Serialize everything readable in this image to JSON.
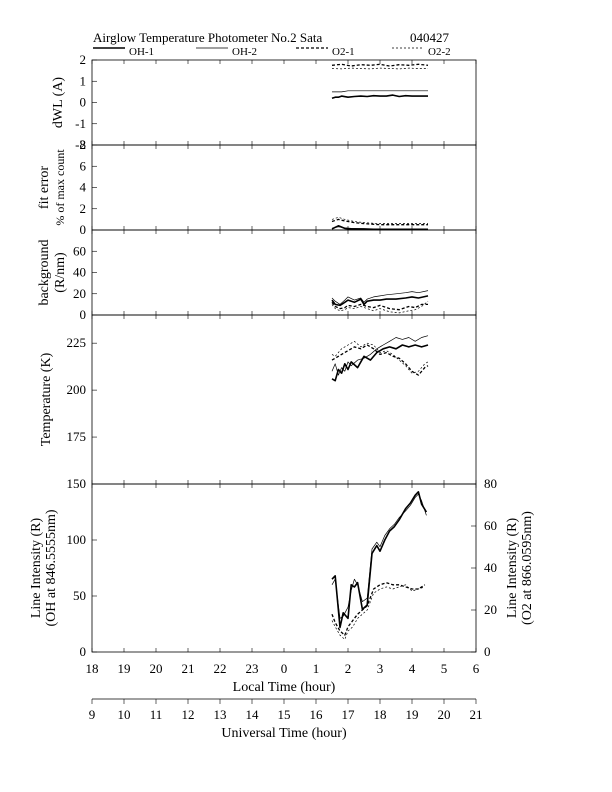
{
  "header": {
    "title": "Airglow Temperature Photometer No.2  Sata",
    "date": "040427"
  },
  "legend": [
    {
      "name": "OH-1",
      "style": "solid-thick"
    },
    {
      "name": "OH-2",
      "style": "solid-thin"
    },
    {
      "name": "O2-1",
      "style": "dashed-thick"
    },
    {
      "name": "O2-2",
      "style": "dashed-thin"
    }
  ],
  "bottom_axes": {
    "local": {
      "label": "Local Time (hour)",
      "ticks": [
        "18",
        "19",
        "20",
        "21",
        "22",
        "23",
        "0",
        "1",
        "2",
        "3",
        "4",
        "5",
        "6"
      ]
    },
    "universal": {
      "label": "Universal Time (hour)",
      "ticks": [
        "9",
        "10",
        "11",
        "12",
        "13",
        "14",
        "15",
        "16",
        "17",
        "18",
        "19",
        "20",
        "21"
      ]
    }
  },
  "chart_data": [
    {
      "type": "line",
      "ylabel": "dWL (A)",
      "ylim": [
        -2,
        2
      ],
      "yticks": [
        "2",
        "1",
        "0",
        "-1",
        "-2"
      ],
      "series": [
        {
          "name": "OH-1",
          "x": [
            1.5,
            1.6,
            1.7,
            1.8,
            2.0,
            2.2,
            2.4,
            2.6,
            2.8,
            3.0,
            3.2,
            3.4,
            3.6,
            3.8,
            4.0,
            4.2,
            4.5
          ],
          "y": [
            0.2,
            0.25,
            0.25,
            0.3,
            0.25,
            0.28,
            0.3,
            0.28,
            0.32,
            0.3,
            0.3,
            0.35,
            0.28,
            0.32,
            0.3,
            0.3,
            0.3
          ]
        },
        {
          "name": "OH-2",
          "x": [
            1.5,
            1.8,
            2.0,
            2.5,
            3.0,
            3.5,
            4.0,
            4.5
          ],
          "y": [
            0.5,
            0.5,
            0.55,
            0.55,
            0.55,
            0.55,
            0.55,
            0.55
          ]
        },
        {
          "name": "O2-1",
          "x": [
            1.5,
            1.8,
            2.1,
            2.4,
            2.7,
            3.0,
            3.3,
            3.6,
            3.9,
            4.2,
            4.5
          ],
          "y": [
            1.75,
            1.8,
            1.72,
            1.78,
            1.75,
            1.8,
            1.72,
            1.78,
            1.75,
            1.8,
            1.75
          ]
        },
        {
          "name": "O2-2",
          "x": [
            1.5,
            1.8,
            2.1,
            2.4,
            2.7,
            3.0,
            3.3,
            3.6,
            3.9,
            4.2,
            4.5
          ],
          "y": [
            1.6,
            1.58,
            1.62,
            1.6,
            1.58,
            1.62,
            1.6,
            1.58,
            1.62,
            1.6,
            1.6
          ]
        }
      ]
    },
    {
      "type": "line",
      "ylabel": "fit error",
      "ylabel2": "% of max count",
      "ylim": [
        0,
        8
      ],
      "yticks": [
        "8",
        "6",
        "4",
        "2",
        "0"
      ],
      "series": [
        {
          "name": "OH-1",
          "x": [
            1.5,
            1.7,
            1.9,
            2.1,
            2.5,
            3.0,
            3.5,
            4.0,
            4.5
          ],
          "y": [
            0.1,
            0.4,
            0.15,
            0.1,
            0.1,
            0.05,
            0.05,
            0.05,
            0.05
          ]
        },
        {
          "name": "OH-2",
          "x": [
            1.5,
            1.7,
            1.9,
            2.1,
            2.5,
            3.0,
            3.5,
            4.0,
            4.5
          ],
          "y": [
            0.15,
            0.3,
            0.2,
            0.15,
            0.1,
            0.1,
            0.1,
            0.1,
            0.1
          ]
        },
        {
          "name": "O2-1",
          "x": [
            1.5,
            1.7,
            1.9,
            2.2,
            2.5,
            3.0,
            3.5,
            4.0,
            4.5
          ],
          "y": [
            0.8,
            1.0,
            0.85,
            0.7,
            0.6,
            0.5,
            0.5,
            0.5,
            0.5
          ]
        },
        {
          "name": "O2-2",
          "x": [
            1.5,
            1.7,
            1.9,
            2.2,
            2.5,
            3.0,
            3.5,
            4.0,
            4.5
          ],
          "y": [
            1.0,
            1.2,
            1.0,
            0.8,
            0.7,
            0.6,
            0.6,
            0.6,
            0.6
          ]
        }
      ]
    },
    {
      "type": "line",
      "ylabel": "background",
      "ylabel2": "(R/nm)",
      "ylim": [
        0,
        80
      ],
      "yticks": [
        "60",
        "40",
        "20",
        "0"
      ],
      "series": [
        {
          "name": "OH-1",
          "x": [
            1.5,
            1.6,
            1.75,
            1.9,
            2.0,
            2.2,
            2.4,
            2.5,
            2.6,
            2.8,
            3.0,
            3.2,
            3.5,
            3.8,
            4.0,
            4.2,
            4.5
          ],
          "y": [
            14,
            10,
            9,
            12,
            14,
            12,
            15,
            10,
            13,
            14,
            14,
            15,
            15,
            16,
            17,
            16,
            18
          ]
        },
        {
          "name": "OH-2",
          "x": [
            1.5,
            1.6,
            1.75,
            1.9,
            2.0,
            2.2,
            2.4,
            2.5,
            2.6,
            2.8,
            3.0,
            3.2,
            3.5,
            3.8,
            4.0,
            4.2,
            4.5
          ],
          "y": [
            16,
            13,
            10,
            14,
            17,
            14,
            16,
            12,
            15,
            17,
            18,
            19,
            20,
            21,
            22,
            21,
            23
          ]
        },
        {
          "name": "O2-1",
          "x": [
            1.5,
            1.6,
            1.75,
            1.9,
            2.0,
            2.2,
            2.4,
            2.6,
            2.8,
            3.0,
            3.3,
            3.6,
            3.9,
            4.1,
            4.3,
            4.5
          ],
          "y": [
            12,
            8,
            6,
            7,
            9,
            8,
            10,
            8,
            7,
            9,
            6,
            5,
            8,
            7,
            10,
            10
          ]
        },
        {
          "name": "O2-2",
          "x": [
            1.5,
            1.6,
            1.75,
            1.9,
            2.0,
            2.2,
            2.4,
            2.6,
            2.8,
            3.0,
            3.3,
            3.6,
            3.9,
            4.1,
            4.3,
            4.5
          ],
          "y": [
            10,
            6,
            4,
            5,
            7,
            6,
            8,
            6,
            4,
            6,
            3,
            2,
            4,
            5,
            8,
            13
          ]
        }
      ]
    },
    {
      "type": "line",
      "ylabel": "Temperature (K)",
      "ylim": [
        150,
        240
      ],
      "yticks": [
        "225",
        "200",
        "175"
      ],
      "series": [
        {
          "name": "OH-1",
          "x": [
            1.5,
            1.6,
            1.7,
            1.8,
            1.9,
            2.0,
            2.1,
            2.3,
            2.5,
            2.7,
            2.9,
            3.1,
            3.3,
            3.5,
            3.7,
            3.9,
            4.1,
            4.3,
            4.5
          ],
          "y": [
            206,
            205,
            211,
            209,
            214,
            211,
            215,
            212,
            218,
            216,
            220,
            222,
            223,
            222,
            224,
            223,
            224,
            223,
            224
          ]
        },
        {
          "name": "OH-2",
          "x": [
            1.5,
            1.6,
            1.7,
            1.8,
            1.9,
            2.0,
            2.1,
            2.3,
            2.5,
            2.7,
            2.9,
            3.1,
            3.3,
            3.5,
            3.7,
            3.9,
            4.1,
            4.3,
            4.5
          ],
          "y": [
            210,
            214,
            208,
            212,
            210,
            215,
            213,
            216,
            217,
            219,
            222,
            224,
            226,
            228,
            227,
            228,
            226,
            228,
            229
          ]
        },
        {
          "name": "O2-1",
          "x": [
            1.5,
            1.6,
            1.8,
            2.0,
            2.2,
            2.4,
            2.6,
            2.8,
            3.0,
            3.2,
            3.4,
            3.6,
            3.8,
            4.0,
            4.2,
            4.4,
            4.5
          ],
          "y": [
            216,
            217,
            219,
            221,
            223,
            222,
            224,
            222,
            219,
            220,
            218,
            217,
            214,
            210,
            208,
            212,
            213
          ]
        },
        {
          "name": "O2-2",
          "x": [
            1.5,
            1.6,
            1.8,
            2.0,
            2.2,
            2.4,
            2.6,
            2.8,
            3.0,
            3.2,
            3.4,
            3.6,
            3.8,
            4.0,
            4.2,
            4.4,
            4.5
          ],
          "y": [
            219,
            218,
            222,
            224,
            226,
            223,
            225,
            224,
            220,
            221,
            219,
            216,
            213,
            209,
            210,
            214,
            215
          ]
        }
      ]
    },
    {
      "type": "line",
      "ylabel": "Line Intensity (R)",
      "ylabel2": "(OH at 846.5555nm)",
      "ylabel_right": "Line Intensity (R)",
      "ylabel_right2": "(O2 at 866.0595nm)",
      "ylim": [
        0,
        150
      ],
      "yticks": [
        "150",
        "100",
        "50",
        "0"
      ],
      "ylim_right": [
        0,
        80
      ],
      "yticks_right": [
        "80",
        "60",
        "40",
        "20",
        "0"
      ],
      "series": [
        {
          "name": "OH-1",
          "axis": "left",
          "x": [
            1.5,
            1.6,
            1.75,
            1.85,
            2.0,
            2.1,
            2.2,
            2.3,
            2.45,
            2.6,
            2.75,
            2.9,
            3.0,
            3.15,
            3.3,
            3.45,
            3.6,
            3.8,
            3.95,
            4.1,
            4.2,
            4.3,
            4.45
          ],
          "y": [
            65,
            68,
            22,
            35,
            30,
            60,
            58,
            62,
            38,
            42,
            88,
            95,
            90,
            100,
            108,
            112,
            118,
            128,
            133,
            140,
            143,
            132,
            125
          ]
        },
        {
          "name": "OH-2",
          "axis": "left",
          "x": [
            1.5,
            1.6,
            1.75,
            1.85,
            2.0,
            2.1,
            2.2,
            2.3,
            2.45,
            2.6,
            2.75,
            2.9,
            3.0,
            3.15,
            3.3,
            3.45,
            3.6,
            3.8,
            3.95,
            4.1,
            4.2,
            4.3,
            4.45
          ],
          "y": [
            60,
            65,
            30,
            32,
            40,
            55,
            65,
            60,
            45,
            48,
            92,
            98,
            94,
            104,
            110,
            114,
            120,
            126,
            131,
            138,
            141,
            135,
            122
          ]
        },
        {
          "name": "O2-1",
          "axis": "right",
          "x": [
            1.5,
            1.6,
            1.75,
            1.9,
            2.0,
            2.15,
            2.3,
            2.45,
            2.6,
            2.8,
            3.0,
            3.2,
            3.4,
            3.6,
            3.8,
            4.0,
            4.2,
            4.4
          ],
          "y": [
            18,
            14,
            10,
            8,
            12,
            15,
            18,
            20,
            22,
            30,
            32,
            33,
            32,
            32,
            31,
            30,
            30,
            32
          ]
        },
        {
          "name": "O2-2",
          "axis": "right",
          "x": [
            1.5,
            1.6,
            1.75,
            1.9,
            2.0,
            2.15,
            2.3,
            2.45,
            2.6,
            2.8,
            3.0,
            3.2,
            3.4,
            3.6,
            3.8,
            4.0,
            4.2,
            4.4
          ],
          "y": [
            15,
            12,
            8,
            6,
            10,
            12,
            16,
            18,
            20,
            28,
            30,
            31,
            30,
            31,
            32,
            29,
            30,
            31
          ]
        }
      ]
    }
  ]
}
